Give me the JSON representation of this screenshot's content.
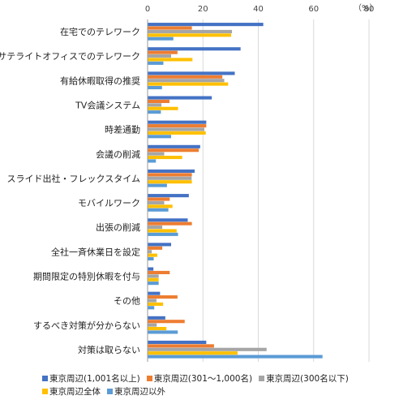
{
  "chart_data": {
    "type": "bar",
    "orientation": "horizontal",
    "unit": "（%）",
    "xlim": [
      0,
      80
    ],
    "xticks": [
      0,
      20,
      40,
      60,
      80
    ],
    "xtick_labels": [
      "0",
      "20",
      "40",
      "60",
      "80"
    ],
    "grid": true,
    "legend_position": "bottom",
    "categories": [
      "在宅でのテレワーク",
      "サテライトオフィスでのテレワーク",
      "有給休暇取得の推奨",
      "TV会議システム",
      "時差通勤",
      "会議の削減",
      "スライド出社・フレックスタイム",
      "モバイルワーク",
      "出張の削減",
      "全社一斉休業日を設定",
      "期間限定の特別休暇を付与",
      "その他",
      "するべき対策が分からない",
      "対策は取らない"
    ],
    "series": [
      {
        "name": "東京周辺(1,001名以上)",
        "color": "#4472C4",
        "values": [
          41.8,
          33.6,
          31.5,
          23.2,
          21.2,
          19.0,
          17.0,
          14.9,
          14.5,
          8.5,
          2.1,
          4.5,
          6.4,
          21.2
        ]
      },
      {
        "name": "東京周辺(301～1,000名)",
        "color": "#ED7D31",
        "values": [
          16.0,
          10.8,
          27.0,
          7.9,
          21.2,
          18.5,
          16.0,
          8.0,
          16.0,
          5.3,
          8.0,
          10.8,
          13.4,
          24.0
        ]
      },
      {
        "name": "東京周辺(300名以下)",
        "color": "#A5A5A5",
        "values": [
          30.5,
          8.5,
          27.7,
          5.0,
          20.5,
          6.0,
          15.9,
          6.0,
          5.3,
          1.5,
          4.0,
          3.2,
          3.3,
          43.0
        ]
      },
      {
        "name": "東京周辺全体",
        "color": "#FFC000",
        "values": [
          30.2,
          16.2,
          29.1,
          11.0,
          21.0,
          12.5,
          16.0,
          9.0,
          10.5,
          3.5,
          4.0,
          5.6,
          6.8,
          32.5
        ]
      },
      {
        "name": "東京周辺以外",
        "color": "#5B9BD5",
        "values": [
          9.3,
          5.7,
          5.2,
          4.8,
          8.5,
          3.0,
          7.0,
          7.5,
          11.0,
          2.2,
          4.0,
          2.4,
          10.9,
          63.2
        ]
      }
    ]
  }
}
